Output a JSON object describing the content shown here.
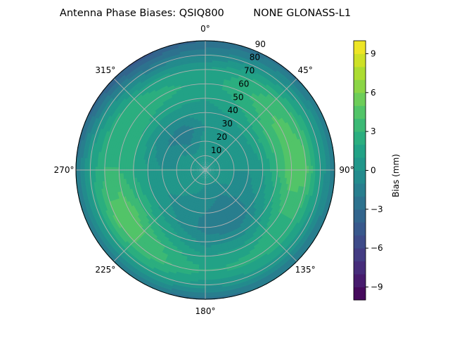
{
  "chart_data": {
    "type": "heatmap",
    "subtype": "polar-contour",
    "title": "Antenna Phase Biases: QSIQ800         NONE GLONASS-L1",
    "angular_tick_labels": [
      "0°",
      "45°",
      "90°",
      "135°",
      "180°",
      "225°",
      "270°",
      "315°"
    ],
    "angular_ticks_deg": [
      0,
      45,
      90,
      135,
      180,
      225,
      270,
      315
    ],
    "radial_tick_labels": [
      "10",
      "20",
      "30",
      "40",
      "50",
      "60",
      "70",
      "80",
      "90"
    ],
    "radial_ticks": [
      10,
      20,
      30,
      40,
      50,
      60,
      70,
      80,
      90
    ],
    "radial_range": [
      0,
      90
    ],
    "grid": true,
    "colorbar": {
      "label": "Bias (mm)",
      "range": [
        -10,
        10
      ],
      "levels": 20,
      "colormap": "viridis",
      "tick_values": [
        -9,
        -6,
        -3,
        0,
        3,
        6,
        9
      ],
      "tick_labels": [
        "−9",
        "−6",
        "−3",
        "0",
        "3",
        "6",
        "9"
      ]
    },
    "azimuths_deg": [
      0,
      30,
      60,
      90,
      120,
      150,
      180,
      210,
      240,
      270,
      300,
      330
    ],
    "zeniths_deg": [
      0,
      10,
      20,
      30,
      40,
      50,
      60,
      70,
      80,
      90
    ],
    "values_mm": [
      [
        0.5,
        0.5,
        0.5,
        0,
        0.5,
        1,
        1.5,
        1,
        -1,
        -3
      ],
      [
        0.5,
        0.5,
        0.5,
        0.5,
        1,
        2,
        3,
        2.5,
        0,
        -2.5
      ],
      [
        0.5,
        0.5,
        0.5,
        0.5,
        1.5,
        3.5,
        4.5,
        3.5,
        1,
        -2
      ],
      [
        0.5,
        0.5,
        0,
        0,
        1,
        3,
        5,
        4.5,
        1,
        -2
      ],
      [
        0.5,
        0.5,
        0,
        -0.5,
        0,
        1.5,
        3,
        3,
        0.5,
        -2
      ],
      [
        0.5,
        0,
        -1,
        -2,
        -2,
        -0.5,
        1.5,
        2.5,
        0.5,
        -2
      ],
      [
        0.5,
        0,
        -0.5,
        -1,
        -1.5,
        -0.5,
        1,
        2,
        0.5,
        -2.5
      ],
      [
        0.5,
        0.5,
        0,
        -0.5,
        0,
        1.5,
        3,
        3.5,
        1.5,
        -2
      ],
      [
        0.5,
        0.5,
        0.5,
        0,
        1,
        3,
        5,
        4.5,
        1.5,
        -2
      ],
      [
        0.5,
        0.5,
        0,
        0,
        1,
        2,
        3,
        3,
        1.5,
        -2
      ],
      [
        0.5,
        0.5,
        0,
        -1,
        0,
        2,
        3,
        2.5,
        0,
        -3.5
      ],
      [
        0.5,
        0.5,
        -1,
        -2,
        0,
        1.5,
        2.5,
        1.5,
        -1.5,
        -4.5
      ]
    ]
  }
}
